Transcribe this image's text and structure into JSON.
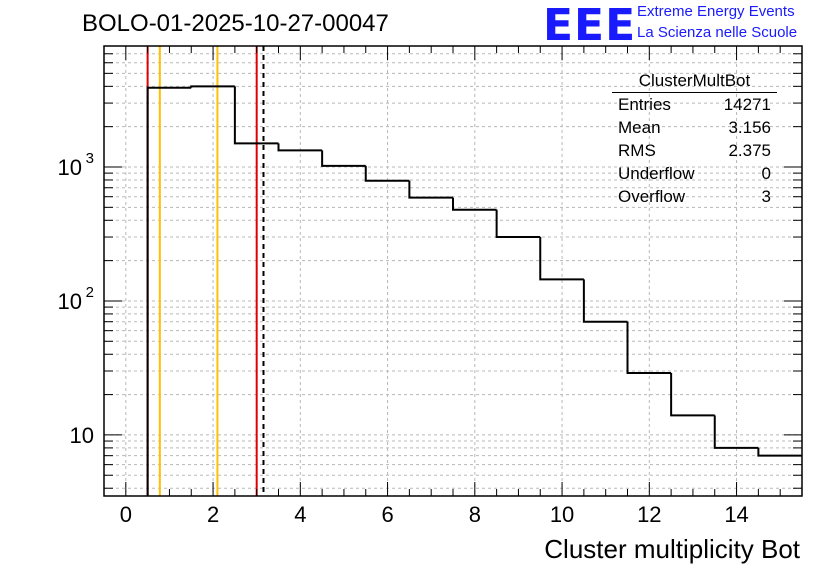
{
  "title": "BOLO-01-2025-10-27-00047",
  "logo": {
    "text": "EEE",
    "line1": "Extreme Energy Events",
    "line2": "La Scienza nelle Scuole",
    "color": "#1a1aff"
  },
  "stats": {
    "title": "ClusterMultBot",
    "rows": [
      {
        "label": "Entries",
        "value": "14271"
      },
      {
        "label": "Mean",
        "value": "3.156"
      },
      {
        "label": "RMS",
        "value": "2.375"
      },
      {
        "label": "Underflow",
        "value": "0"
      },
      {
        "label": "Overflow",
        "value": "3"
      }
    ]
  },
  "chart_data": {
    "type": "histogram",
    "title": "BOLO-01-2025-10-27-00047",
    "xlabel": "Cluster multiplicity Bot",
    "ylabel": "",
    "xlim": [
      -0.5,
      15.5
    ],
    "ylim": [
      3.5,
      8000
    ],
    "yscale": "log",
    "grid": true,
    "bins": [
      {
        "low": 0.5,
        "high": 1.5,
        "value": 3900
      },
      {
        "low": 1.5,
        "high": 2.5,
        "value": 4000
      },
      {
        "low": 2.5,
        "high": 3.5,
        "value": 1500
      },
      {
        "low": 3.5,
        "high": 4.5,
        "value": 1330
      },
      {
        "low": 4.5,
        "high": 5.5,
        "value": 1020
      },
      {
        "low": 5.5,
        "high": 6.5,
        "value": 790
      },
      {
        "low": 6.5,
        "high": 7.5,
        "value": 590
      },
      {
        "low": 7.5,
        "high": 8.5,
        "value": 480
      },
      {
        "low": 8.5,
        "high": 9.5,
        "value": 300
      },
      {
        "low": 9.5,
        "high": 10.5,
        "value": 145
      },
      {
        "low": 10.5,
        "high": 11.5,
        "value": 70
      },
      {
        "low": 11.5,
        "high": 12.5,
        "value": 29
      },
      {
        "low": 12.5,
        "high": 13.5,
        "value": 14
      },
      {
        "low": 13.5,
        "high": 14.5,
        "value": 8
      },
      {
        "low": 14.5,
        "high": 15.5,
        "value": 7
      }
    ],
    "x_ticks": [
      0,
      2,
      4,
      6,
      8,
      10,
      12,
      14
    ],
    "x_tick_labels": [
      "0",
      "2",
      "4",
      "6",
      "8",
      "10",
      "12",
      "14"
    ],
    "y_ticks": [
      10,
      100,
      1000
    ],
    "y_tick_labels": [
      {
        "base": "10",
        "exp": ""
      },
      {
        "base": "10",
        "exp": "2"
      },
      {
        "base": "10",
        "exp": "3"
      }
    ],
    "vertical_lines": [
      {
        "x": 0.5,
        "color": "#e00000",
        "style": "solid"
      },
      {
        "x": 0.78,
        "color": "#ffc000",
        "style": "solid"
      },
      {
        "x": 2.1,
        "color": "#ffc000",
        "style": "solid"
      },
      {
        "x": 3.0,
        "color": "#e00000",
        "style": "solid"
      },
      {
        "x": 3.156,
        "color": "#000000",
        "style": "dashed"
      }
    ]
  }
}
